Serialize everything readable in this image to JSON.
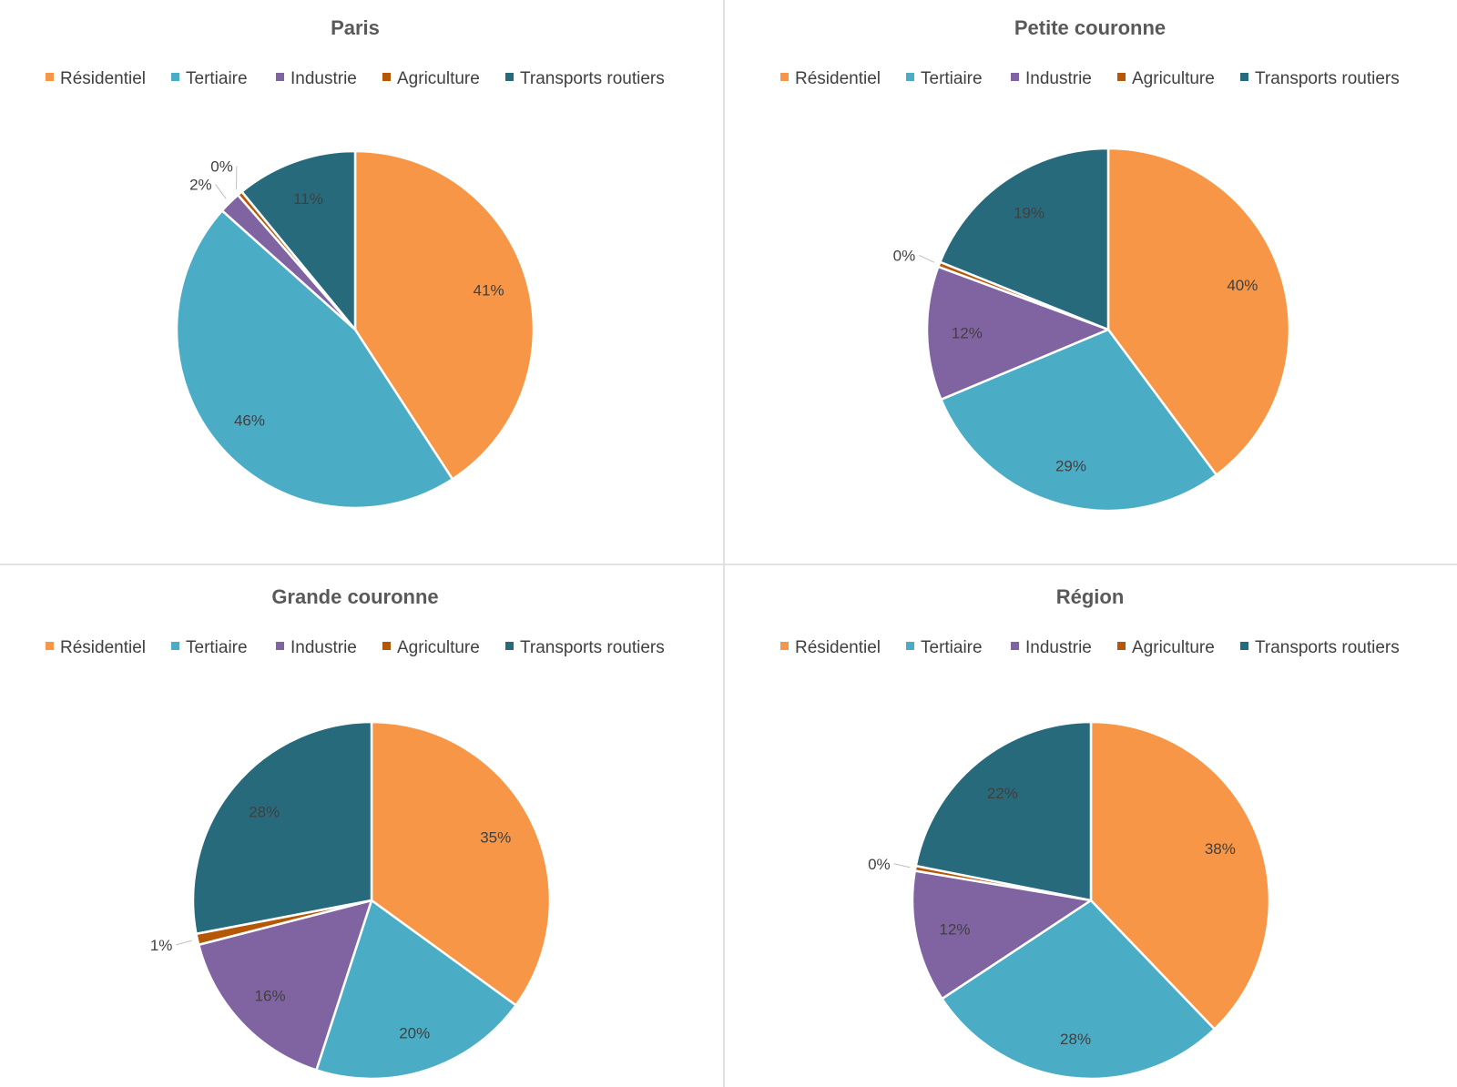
{
  "colors": {
    "Résidentiel": "#f79646",
    "Tertiaire": "#4bacc6",
    "Industrie": "#8064a2",
    "Agriculture": "#b65708",
    "Transports routiers": "#276a7c",
    "divider": "#d9d9d9"
  },
  "chart_data": [
    {
      "type": "pie",
      "title": "Paris",
      "legend_position": "top",
      "categories": [
        "Résidentiel",
        "Tertiaire",
        "Industrie",
        "Agriculture",
        "Transports routiers"
      ],
      "values": [
        41,
        46,
        2,
        0,
        11
      ],
      "labels": [
        "41%",
        "46%",
        "2%",
        "0%",
        "11%"
      ]
    },
    {
      "type": "pie",
      "title": "Petite couronne",
      "legend_position": "top",
      "categories": [
        "Résidentiel",
        "Tertiaire",
        "Industrie",
        "Agriculture",
        "Transports routiers"
      ],
      "values": [
        40,
        29,
        12,
        0,
        19
      ],
      "labels": [
        "40%",
        "29%",
        "12%",
        "0%",
        "19%"
      ]
    },
    {
      "type": "pie",
      "title": "Grande couronne",
      "legend_position": "top",
      "categories": [
        "Résidentiel",
        "Tertiaire",
        "Industrie",
        "Agriculture",
        "Transports routiers"
      ],
      "values": [
        35,
        20,
        16,
        1,
        28
      ],
      "labels": [
        "35%",
        "20%",
        "16%",
        "1%",
        "28%"
      ]
    },
    {
      "type": "pie",
      "title": "Région",
      "legend_position": "top",
      "categories": [
        "Résidentiel",
        "Tertiaire",
        "Industrie",
        "Agriculture",
        "Transports routiers"
      ],
      "values": [
        38,
        28,
        12,
        0,
        22
      ],
      "labels": [
        "38%",
        "28%",
        "12%",
        "0%",
        "22%"
      ]
    }
  ]
}
